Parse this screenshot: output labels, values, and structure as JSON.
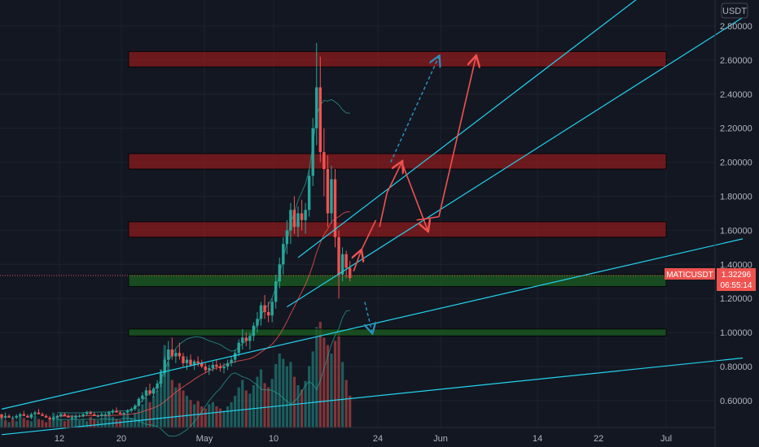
{
  "chart_data": {
    "type": "candlestick",
    "symbol_badge": "MATICUSDT",
    "last_price": "1.32296",
    "countdown": "06:55:14",
    "currency": "USDT",
    "y_ticks": [
      "2.80000",
      "2.60000",
      "2.40000",
      "2.20000",
      "2.00000",
      "1.80000",
      "1.60000",
      "1.40000",
      "1.20000",
      "1.00000",
      "0.80000",
      "0.60000"
    ],
    "x_ticks": [
      "12",
      "20",
      "May",
      "10",
      "24",
      "Jun",
      "14",
      "22",
      "Jul"
    ],
    "ylim": [
      0.4,
      2.9
    ],
    "colors": {
      "up": "#26a69a",
      "down": "#ef5350",
      "line": "#22d3ee",
      "red_zone": "#b71c1c",
      "green_zone": "#1b5e20",
      "bg": "#131722"
    },
    "resistance_zones": [
      [
        2.56,
        2.65
      ],
      [
        1.96,
        2.05
      ],
      [
        1.56,
        1.65
      ]
    ],
    "support_zones": [
      [
        1.27,
        1.34
      ],
      [
        0.98,
        1.02
      ]
    ],
    "candles": [
      [
        0.52,
        0.52,
        0.49,
        0.5
      ],
      [
        0.5,
        0.53,
        0.49,
        0.51
      ],
      [
        0.51,
        0.52,
        0.5,
        0.5
      ],
      [
        0.5,
        0.51,
        0.49,
        0.5
      ],
      [
        0.5,
        0.52,
        0.49,
        0.51
      ],
      [
        0.51,
        0.53,
        0.5,
        0.52
      ],
      [
        0.52,
        0.54,
        0.51,
        0.51
      ],
      [
        0.51,
        0.52,
        0.5,
        0.5
      ],
      [
        0.5,
        0.53,
        0.49,
        0.52
      ],
      [
        0.52,
        0.54,
        0.51,
        0.53
      ],
      [
        0.53,
        0.55,
        0.52,
        0.52
      ],
      [
        0.52,
        0.53,
        0.51,
        0.51
      ],
      [
        0.51,
        0.52,
        0.5,
        0.5
      ],
      [
        0.5,
        0.51,
        0.49,
        0.49
      ],
      [
        0.49,
        0.51,
        0.48,
        0.5
      ],
      [
        0.5,
        0.52,
        0.49,
        0.51
      ],
      [
        0.51,
        0.53,
        0.5,
        0.52
      ],
      [
        0.52,
        0.53,
        0.51,
        0.51
      ],
      [
        0.51,
        0.52,
        0.5,
        0.5
      ],
      [
        0.5,
        0.51,
        0.49,
        0.5
      ],
      [
        0.5,
        0.52,
        0.49,
        0.51
      ],
      [
        0.51,
        0.52,
        0.5,
        0.51
      ],
      [
        0.51,
        0.53,
        0.5,
        0.52
      ],
      [
        0.52,
        0.54,
        0.51,
        0.53
      ],
      [
        0.53,
        0.54,
        0.52,
        0.52
      ],
      [
        0.52,
        0.53,
        0.51,
        0.51
      ],
      [
        0.51,
        0.52,
        0.5,
        0.51
      ],
      [
        0.51,
        0.53,
        0.5,
        0.52
      ],
      [
        0.52,
        0.53,
        0.51,
        0.52
      ],
      [
        0.52,
        0.54,
        0.51,
        0.53
      ],
      [
        0.53,
        0.55,
        0.52,
        0.54
      ],
      [
        0.54,
        0.56,
        0.53,
        0.53
      ],
      [
        0.53,
        0.54,
        0.52,
        0.52
      ],
      [
        0.52,
        0.53,
        0.51,
        0.53
      ],
      [
        0.53,
        0.55,
        0.52,
        0.54
      ],
      [
        0.54,
        0.56,
        0.53,
        0.55
      ],
      [
        0.55,
        0.58,
        0.54,
        0.57
      ],
      [
        0.57,
        0.62,
        0.56,
        0.61
      ],
      [
        0.61,
        0.65,
        0.59,
        0.63
      ],
      [
        0.63,
        0.68,
        0.61,
        0.66
      ],
      [
        0.66,
        0.7,
        0.63,
        0.64
      ],
      [
        0.64,
        0.68,
        0.62,
        0.67
      ],
      [
        0.67,
        0.72,
        0.65,
        0.7
      ],
      [
        0.7,
        0.78,
        0.68,
        0.76
      ],
      [
        0.76,
        0.86,
        0.74,
        0.84
      ],
      [
        0.84,
        0.95,
        0.8,
        0.9
      ],
      [
        0.9,
        0.97,
        0.84,
        0.86
      ],
      [
        0.86,
        0.9,
        0.82,
        0.88
      ],
      [
        0.88,
        0.94,
        0.84,
        0.86
      ],
      [
        0.86,
        0.88,
        0.8,
        0.82
      ],
      [
        0.82,
        0.86,
        0.78,
        0.84
      ],
      [
        0.84,
        0.87,
        0.8,
        0.81
      ],
      [
        0.81,
        0.84,
        0.78,
        0.83
      ],
      [
        0.83,
        0.86,
        0.8,
        0.82
      ],
      [
        0.82,
        0.84,
        0.79,
        0.8
      ],
      [
        0.8,
        0.82,
        0.76,
        0.78
      ],
      [
        0.78,
        0.81,
        0.75,
        0.79
      ],
      [
        0.79,
        0.83,
        0.77,
        0.81
      ],
      [
        0.81,
        0.84,
        0.78,
        0.8
      ],
      [
        0.8,
        0.82,
        0.77,
        0.79
      ],
      [
        0.79,
        0.82,
        0.76,
        0.8
      ],
      [
        0.8,
        0.84,
        0.78,
        0.82
      ],
      [
        0.82,
        0.86,
        0.8,
        0.84
      ],
      [
        0.84,
        0.9,
        0.82,
        0.88
      ],
      [
        0.88,
        0.96,
        0.86,
        0.94
      ],
      [
        0.94,
        1.02,
        0.9,
        0.97
      ],
      [
        0.97,
        1.0,
        0.92,
        0.95
      ],
      [
        0.95,
        1.0,
        0.9,
        0.98
      ],
      [
        0.98,
        1.06,
        0.95,
        1.04
      ],
      [
        1.04,
        1.12,
        1.0,
        1.08
      ],
      [
        1.08,
        1.18,
        1.04,
        1.16
      ],
      [
        1.16,
        1.22,
        1.08,
        1.12
      ],
      [
        1.12,
        1.18,
        1.06,
        1.1
      ],
      [
        1.1,
        1.2,
        1.06,
        1.18
      ],
      [
        1.18,
        1.34,
        1.14,
        1.3
      ],
      [
        1.3,
        1.44,
        1.26,
        1.4
      ],
      [
        1.4,
        1.56,
        1.34,
        1.52
      ],
      [
        1.52,
        1.66,
        1.46,
        1.6
      ],
      [
        1.6,
        1.76,
        1.52,
        1.72
      ],
      [
        1.72,
        1.8,
        1.58,
        1.62
      ],
      [
        1.62,
        1.74,
        1.56,
        1.7
      ],
      [
        1.7,
        1.78,
        1.6,
        1.66
      ],
      [
        1.66,
        1.76,
        1.58,
        1.72
      ],
      [
        1.72,
        1.96,
        1.68,
        1.92
      ],
      [
        1.92,
        2.26,
        1.86,
        2.2
      ],
      [
        2.2,
        2.7,
        2.1,
        2.44
      ],
      [
        2.44,
        2.62,
        2.0,
        2.06
      ],
      [
        2.06,
        2.2,
        1.8,
        1.96
      ],
      [
        1.96,
        2.04,
        1.62,
        1.7
      ],
      [
        1.7,
        1.98,
        1.64,
        1.9
      ],
      [
        1.9,
        1.96,
        1.5,
        1.56
      ],
      [
        1.56,
        1.6,
        1.2,
        1.34
      ],
      [
        1.34,
        1.5,
        1.3,
        1.46
      ],
      [
        1.46,
        1.48,
        1.32,
        1.38
      ],
      [
        1.38,
        1.42,
        1.3,
        1.32
      ]
    ],
    "volumes": [
      0.1,
      0.07,
      0.05,
      0.08,
      0.06,
      0.12,
      0.09,
      0.07,
      0.06,
      0.11,
      0.08,
      0.07,
      0.05,
      0.09,
      0.14,
      0.1,
      0.08,
      0.06,
      0.07,
      0.12,
      0.09,
      0.07,
      0.08,
      0.06,
      0.1,
      0.08,
      0.07,
      0.09,
      0.12,
      0.15,
      0.1,
      0.08,
      0.07,
      0.11,
      0.13,
      0.09,
      0.14,
      0.18,
      0.22,
      0.28,
      0.24,
      0.3,
      0.35,
      0.55,
      0.78,
      0.62,
      0.45,
      0.38,
      0.42,
      0.35,
      0.3,
      0.26,
      0.22,
      0.25,
      0.2,
      0.18,
      0.22,
      0.24,
      0.2,
      0.18,
      0.16,
      0.2,
      0.24,
      0.3,
      0.38,
      0.45,
      0.35,
      0.32,
      0.4,
      0.48,
      0.55,
      0.42,
      0.38,
      0.46,
      0.6,
      0.7,
      0.65,
      0.58,
      0.62,
      0.48,
      0.4,
      0.36,
      0.44,
      0.58,
      0.72,
      0.95,
      1.0,
      0.85,
      0.78,
      0.7,
      0.82,
      0.9,
      0.62,
      0.45,
      0.3
    ],
    "vol_down_idx": [
      1,
      3,
      6,
      7,
      10,
      11,
      12,
      13,
      17,
      18,
      24,
      25,
      31,
      32,
      40,
      46,
      48,
      49,
      51,
      53,
      54,
      55,
      58,
      59,
      66,
      71,
      72,
      79,
      81,
      86,
      87,
      88,
      90,
      91,
      93,
      94
    ],
    "trend_lines": [
      [
        0,
        0.4,
        200,
        0.85
      ],
      [
        0,
        0.55,
        200,
        1.55
      ],
      [
        77,
        1.15,
        200,
        2.85
      ],
      [
        80,
        1.44,
        180,
        3.1
      ]
    ],
    "projection_red": [
      [
        95,
        1.36
      ],
      [
        97,
        1.48
      ],
      [
        101,
        1.66
      ],
      [
        102,
        1.62
      ],
      [
        104,
        1.82
      ],
      [
        108,
        2.0
      ],
      [
        115,
        1.6
      ],
      [
        112,
        1.66
      ],
      [
        118,
        1.68
      ],
      [
        128,
        2.62
      ],
      [
        131,
        2.58
      ]
    ],
    "projection_blue": [
      [
        105,
        2.0
      ],
      [
        118,
        2.62
      ]
    ],
    "projection_blue2": [
      [
        98,
        1.18
      ],
      [
        100,
        1.0
      ]
    ]
  }
}
